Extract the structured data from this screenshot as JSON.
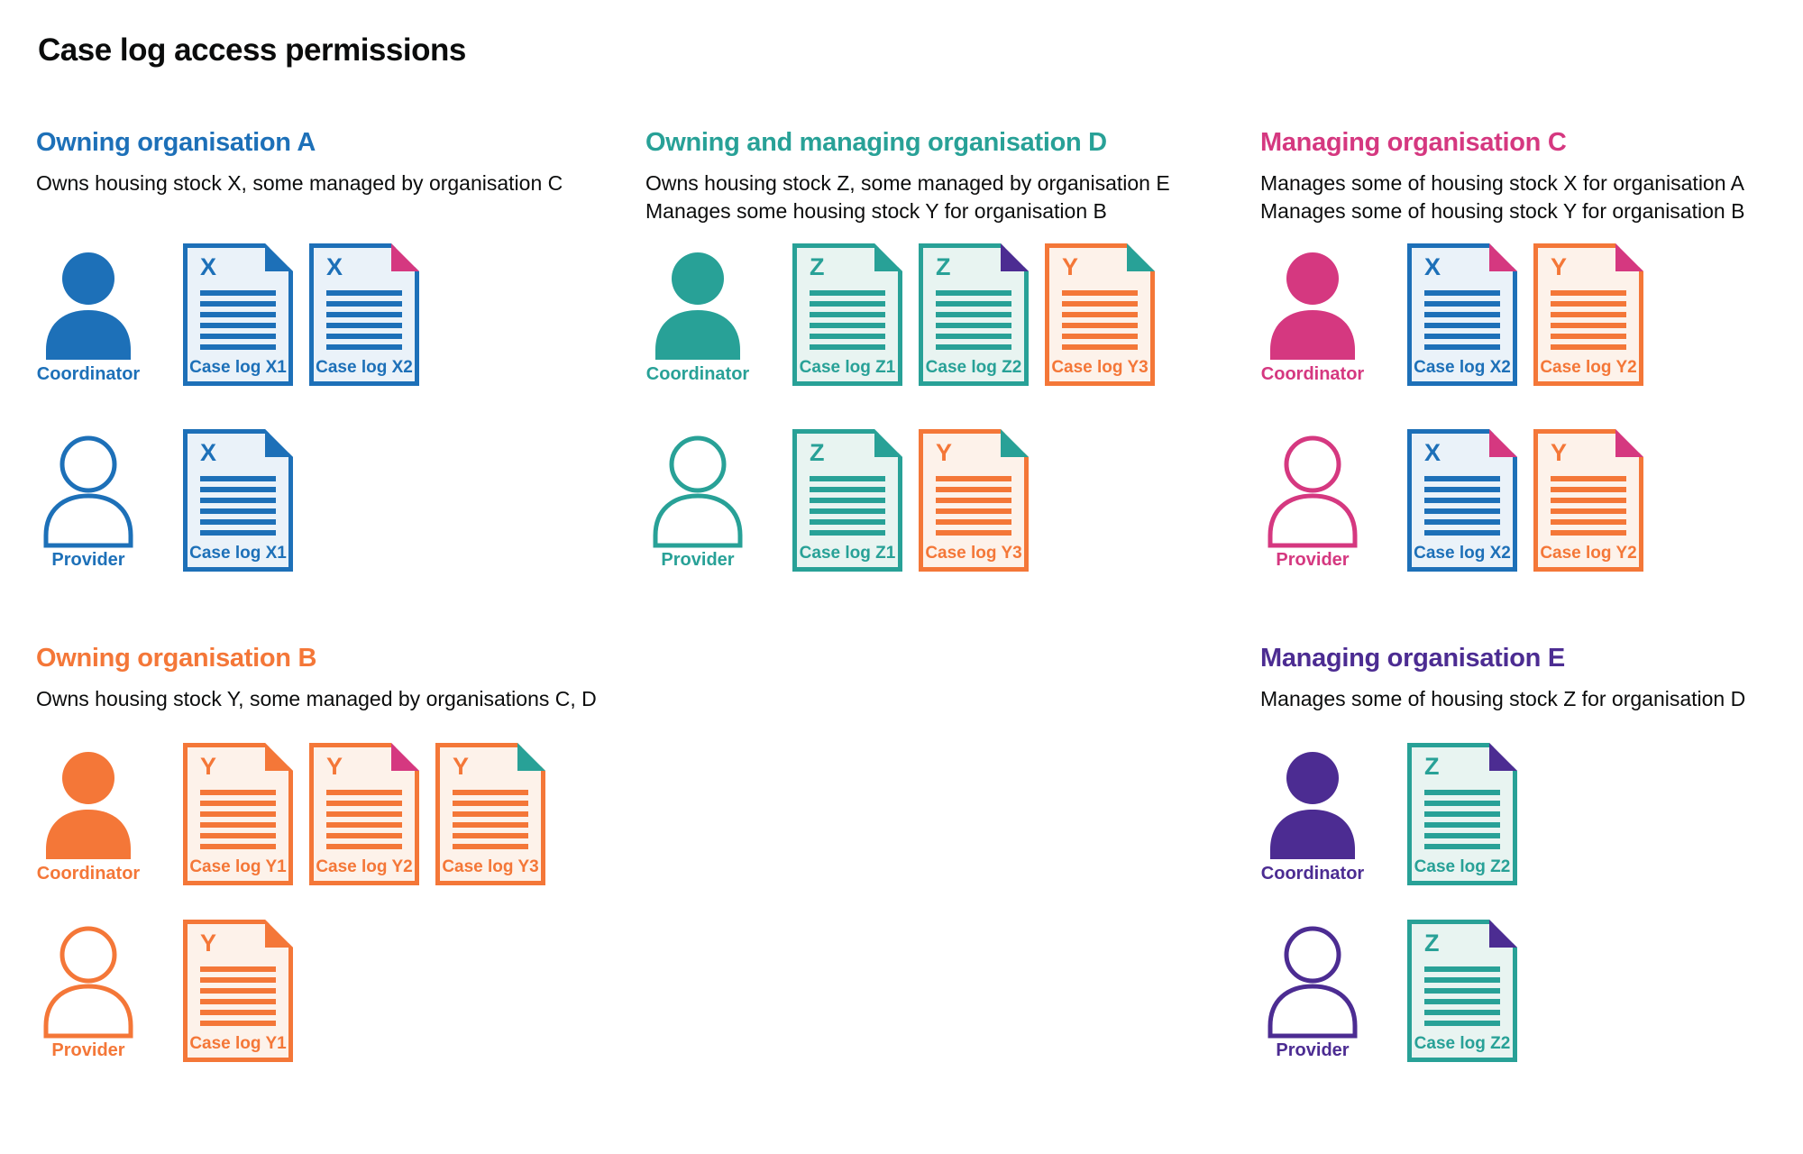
{
  "page": {
    "title": "Case log access permissions"
  },
  "palette": {
    "text": "#0b0c0c",
    "blue": "#1d70b8",
    "teal": "#28a197",
    "orange": "#f47738",
    "pink": "#d53880",
    "purple": "#4c2c92",
    "blue_fill": "#eaf2f9",
    "teal_fill": "#e8f4f1",
    "orange_fill": "#fdf2ea"
  },
  "organisations": [
    {
      "id": "org-a",
      "name": "Owning organisation A",
      "color": "blue",
      "placement": "upper",
      "description": [
        "Owns housing stock X, some managed by organisation C"
      ],
      "rows": [
        {
          "role": "Coordinator",
          "person_style": "filled",
          "docs": [
            {
              "letter": "X",
              "label": "Case log X1",
              "doc_color": "blue",
              "fold_color": "blue"
            },
            {
              "letter": "X",
              "label": "Case log X2",
              "doc_color": "blue",
              "fold_color": "pink"
            }
          ]
        },
        {
          "role": "Provider",
          "person_style": "outline",
          "docs": [
            {
              "letter": "X",
              "label": "Case log X1",
              "doc_color": "blue",
              "fold_color": "blue"
            }
          ]
        }
      ]
    },
    {
      "id": "org-d",
      "name": "Owning and managing organisation D",
      "color": "teal",
      "placement": "upper",
      "description": [
        "Owns housing stock Z, some managed by organisation E",
        "Manages some housing stock Y for organisation B"
      ],
      "rows": [
        {
          "role": "Coordinator",
          "person_style": "filled",
          "docs": [
            {
              "letter": "Z",
              "label": "Case log Z1",
              "doc_color": "teal",
              "fold_color": "teal"
            },
            {
              "letter": "Z",
              "label": "Case log Z2",
              "doc_color": "teal",
              "fold_color": "purple"
            },
            {
              "letter": "Y",
              "label": "Case log Y3",
              "doc_color": "orange",
              "fold_color": "teal"
            }
          ]
        },
        {
          "role": "Provider",
          "person_style": "outline",
          "docs": [
            {
              "letter": "Z",
              "label": "Case log Z1",
              "doc_color": "teal",
              "fold_color": "teal"
            },
            {
              "letter": "Y",
              "label": "Case log Y3",
              "doc_color": "orange",
              "fold_color": "teal"
            }
          ]
        }
      ]
    },
    {
      "id": "org-c",
      "name": "Managing organisation C",
      "color": "pink",
      "placement": "upper",
      "description": [
        "Manages some of housing stock X for organisation A",
        "Manages some of housing stock Y for organisation B"
      ],
      "rows": [
        {
          "role": "Coordinator",
          "person_style": "filled",
          "docs": [
            {
              "letter": "X",
              "label": "Case log X2",
              "doc_color": "blue",
              "fold_color": "pink"
            },
            {
              "letter": "Y",
              "label": "Case log Y2",
              "doc_color": "orange",
              "fold_color": "pink"
            }
          ]
        },
        {
          "role": "Provider",
          "person_style": "outline",
          "docs": [
            {
              "letter": "X",
              "label": "Case log X2",
              "doc_color": "blue",
              "fold_color": "pink"
            },
            {
              "letter": "Y",
              "label": "Case log Y2",
              "doc_color": "orange",
              "fold_color": "pink"
            }
          ]
        }
      ]
    },
    {
      "id": "org-b",
      "name": "Owning organisation B",
      "color": "orange",
      "placement": "lower",
      "description": [
        "Owns housing stock Y, some managed by organisations C, D"
      ],
      "rows": [
        {
          "role": "Coordinator",
          "person_style": "filled",
          "docs": [
            {
              "letter": "Y",
              "label": "Case log Y1",
              "doc_color": "orange",
              "fold_color": "orange"
            },
            {
              "letter": "Y",
              "label": "Case log Y2",
              "doc_color": "orange",
              "fold_color": "pink"
            },
            {
              "letter": "Y",
              "label": "Case log Y3",
              "doc_color": "orange",
              "fold_color": "teal"
            }
          ]
        },
        {
          "role": "Provider",
          "person_style": "outline",
          "docs": [
            {
              "letter": "Y",
              "label": "Case log Y1",
              "doc_color": "orange",
              "fold_color": "orange"
            }
          ]
        }
      ]
    },
    {
      "id": "org-e",
      "name": "Managing organisation E",
      "color": "purple",
      "placement": "lower",
      "description": [
        "Manages some of housing stock Z for organisation D"
      ],
      "rows": [
        {
          "role": "Coordinator",
          "person_style": "filled",
          "docs": [
            {
              "letter": "Z",
              "label": "Case log Z2",
              "doc_color": "teal",
              "fold_color": "purple"
            }
          ]
        },
        {
          "role": "Provider",
          "person_style": "outline",
          "docs": [
            {
              "letter": "Z",
              "label": "Case log Z2",
              "doc_color": "teal",
              "fold_color": "purple"
            }
          ]
        }
      ]
    }
  ]
}
